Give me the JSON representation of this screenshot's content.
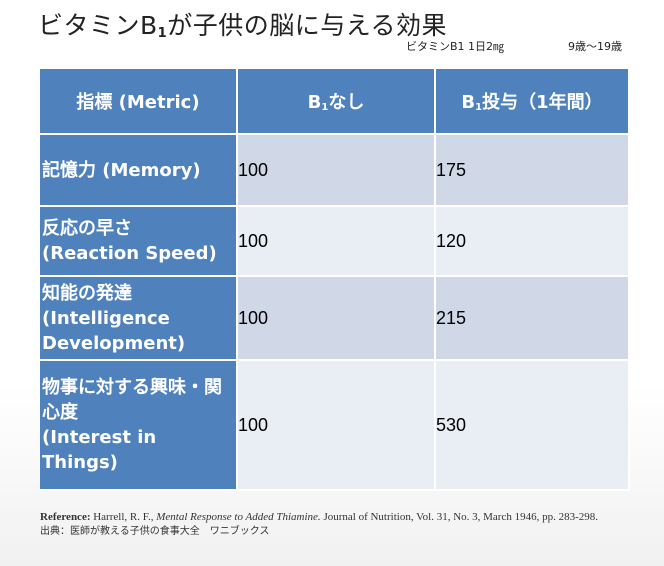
{
  "title": {
    "main": "ビタミンB",
    "sub": "1",
    "rest": "が子供の脳に与える効果"
  },
  "subtitle": {
    "dose": "ビタミンB1 1日2㎎",
    "age": "9歳～19歳"
  },
  "table": {
    "headers": {
      "metric": "指標 (Metric)",
      "col_none_prefix": "B",
      "col_none_sub": "1",
      "col_none_suffix": "なし",
      "col_dose_prefix": "B",
      "col_dose_sub": "1",
      "col_dose_suffix": "投与（1年間）"
    },
    "rows": [
      {
        "metric_ja": "記憶力 (Memory)",
        "metric_en": "",
        "none": "100",
        "dosed": "175"
      },
      {
        "metric_ja": "反応の早さ",
        "metric_en": "(Reaction Speed)",
        "none": "100",
        "dosed": "120"
      },
      {
        "metric_ja": "知能の発達",
        "metric_en": "(Intelligence Development)",
        "none": "100",
        "dosed": "215"
      },
      {
        "metric_ja": "物事に対する興味・関心度",
        "metric_en": "(Interest in Things)",
        "none": "100",
        "dosed": "530"
      }
    ]
  },
  "reference": {
    "label": "Reference:",
    "authors": "Harrell, R. F.,",
    "article": "Mental Response to Added Thiamine.",
    "journal": "Journal of Nutrition, Vol. 31, No. 3, March 1946, pp. 283-298.",
    "source": "出典：医師が教える子供の食事大全　ワニブックス"
  }
}
